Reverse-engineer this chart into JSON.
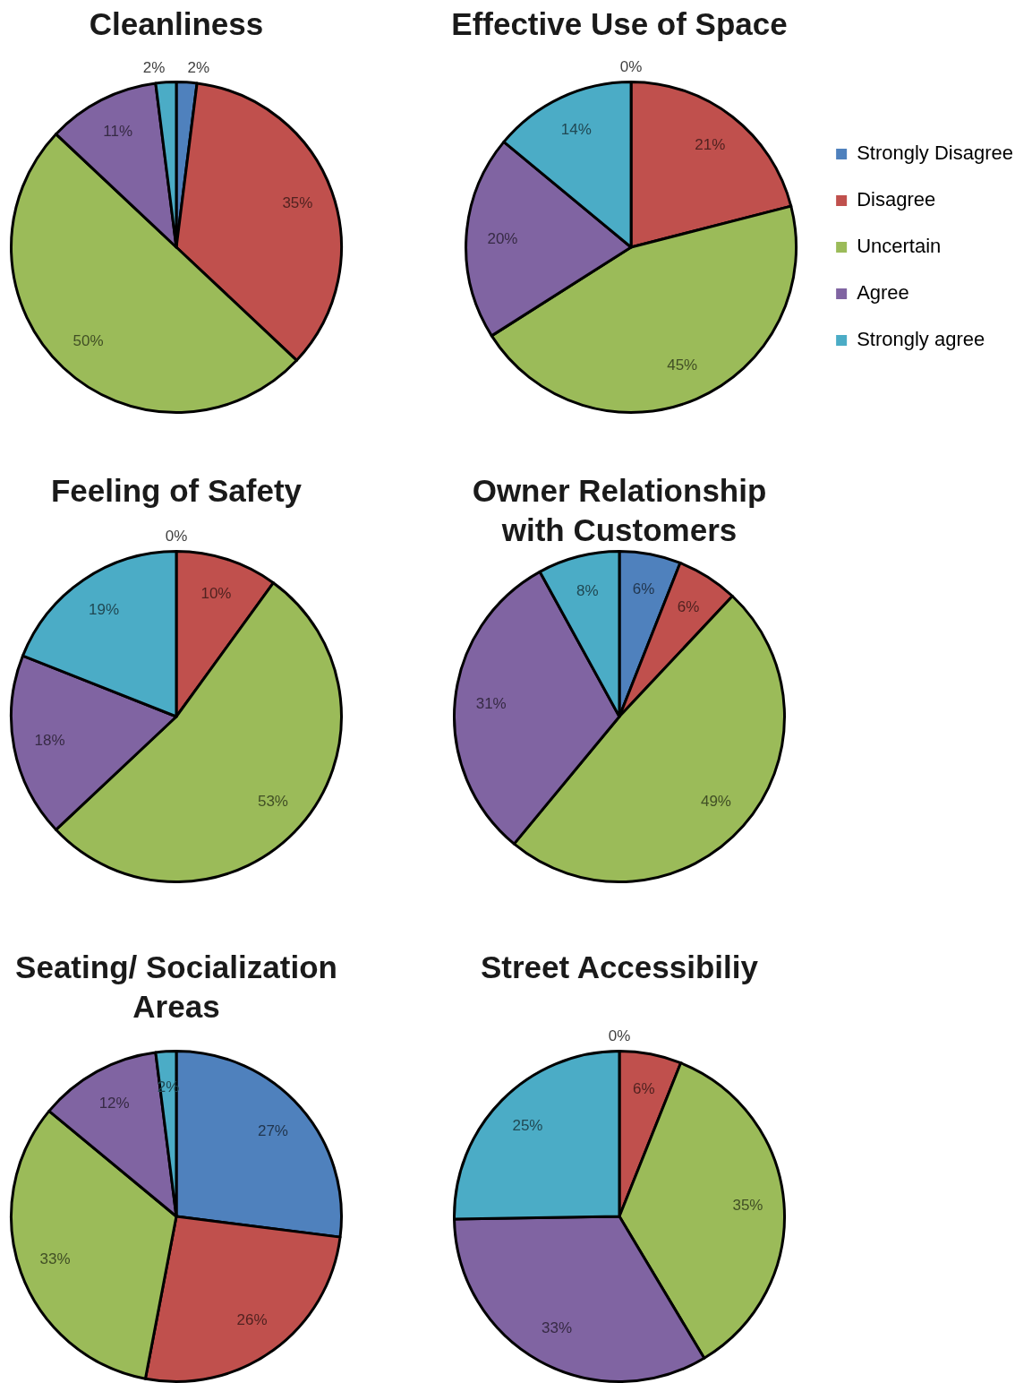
{
  "chart_data": [
    {
      "type": "pie",
      "title": "Cleanliness",
      "categories": [
        null,
        null,
        null,
        null,
        null
      ],
      "values": [
        2,
        35,
        50,
        11,
        2
      ],
      "colors": [
        "#4f81bd",
        "#c0504d",
        "#9bbb59",
        "#8064a2",
        "#4bacc6"
      ],
      "value_labels": [
        "2%",
        "35%",
        "50%",
        "11%",
        "2%"
      ]
    },
    {
      "type": "pie",
      "title": "Effective Use of Space",
      "categories": [
        "Strongly Disagree",
        "Disagree",
        "Uncertain",
        "Agree",
        "Strongly agree"
      ],
      "values": [
        0,
        21,
        45,
        20,
        14
      ],
      "colors": [
        "#4f81bd",
        "#c0504d",
        "#9bbb59",
        "#8064a2",
        "#4bacc6"
      ],
      "value_labels": [
        "0%",
        "21%",
        "45%",
        "20%",
        "14%"
      ],
      "legend": "right"
    },
    {
      "type": "pie",
      "title": "Feeling of Safety",
      "categories": [
        null,
        null,
        null,
        null,
        null
      ],
      "values": [
        0,
        10,
        53,
        18,
        19
      ],
      "colors": [
        "#4f81bd",
        "#c0504d",
        "#9bbb59",
        "#8064a2",
        "#4bacc6"
      ],
      "value_labels": [
        "0%",
        "10%",
        "53%",
        "18%",
        "19%"
      ]
    },
    {
      "type": "pie",
      "title": "Owner Relationship with Customers",
      "categories": [
        null,
        null,
        null,
        null,
        null
      ],
      "values": [
        6,
        6,
        49,
        31,
        8
      ],
      "colors": [
        "#4f81bd",
        "#c0504d",
        "#9bbb59",
        "#8064a2",
        "#4bacc6"
      ],
      "value_labels": [
        "6%",
        "6%",
        "49%",
        "31%",
        "8%"
      ]
    },
    {
      "type": "pie",
      "title": "Seating/ Socialization Areas",
      "categories": [
        null,
        null,
        null,
        null,
        null
      ],
      "values": [
        27,
        26,
        33,
        12,
        2
      ],
      "colors": [
        "#4f81bd",
        "#c0504d",
        "#9bbb59",
        "#8064a2",
        "#4bacc6"
      ],
      "value_labels": [
        "27%",
        "26%",
        "33%",
        "12%",
        "2%"
      ]
    },
    {
      "type": "pie",
      "title": "Street Accessibiliy",
      "categories": [
        null,
        null,
        null,
        null,
        null
      ],
      "values": [
        0,
        6,
        35,
        33,
        25
      ],
      "colors": [
        "#4f81bd",
        "#c0504d",
        "#9bbb59",
        "#8064a2",
        "#4bacc6"
      ],
      "value_labels": [
        "0%",
        "6%",
        "35%",
        "33%",
        "25%"
      ]
    }
  ]
}
